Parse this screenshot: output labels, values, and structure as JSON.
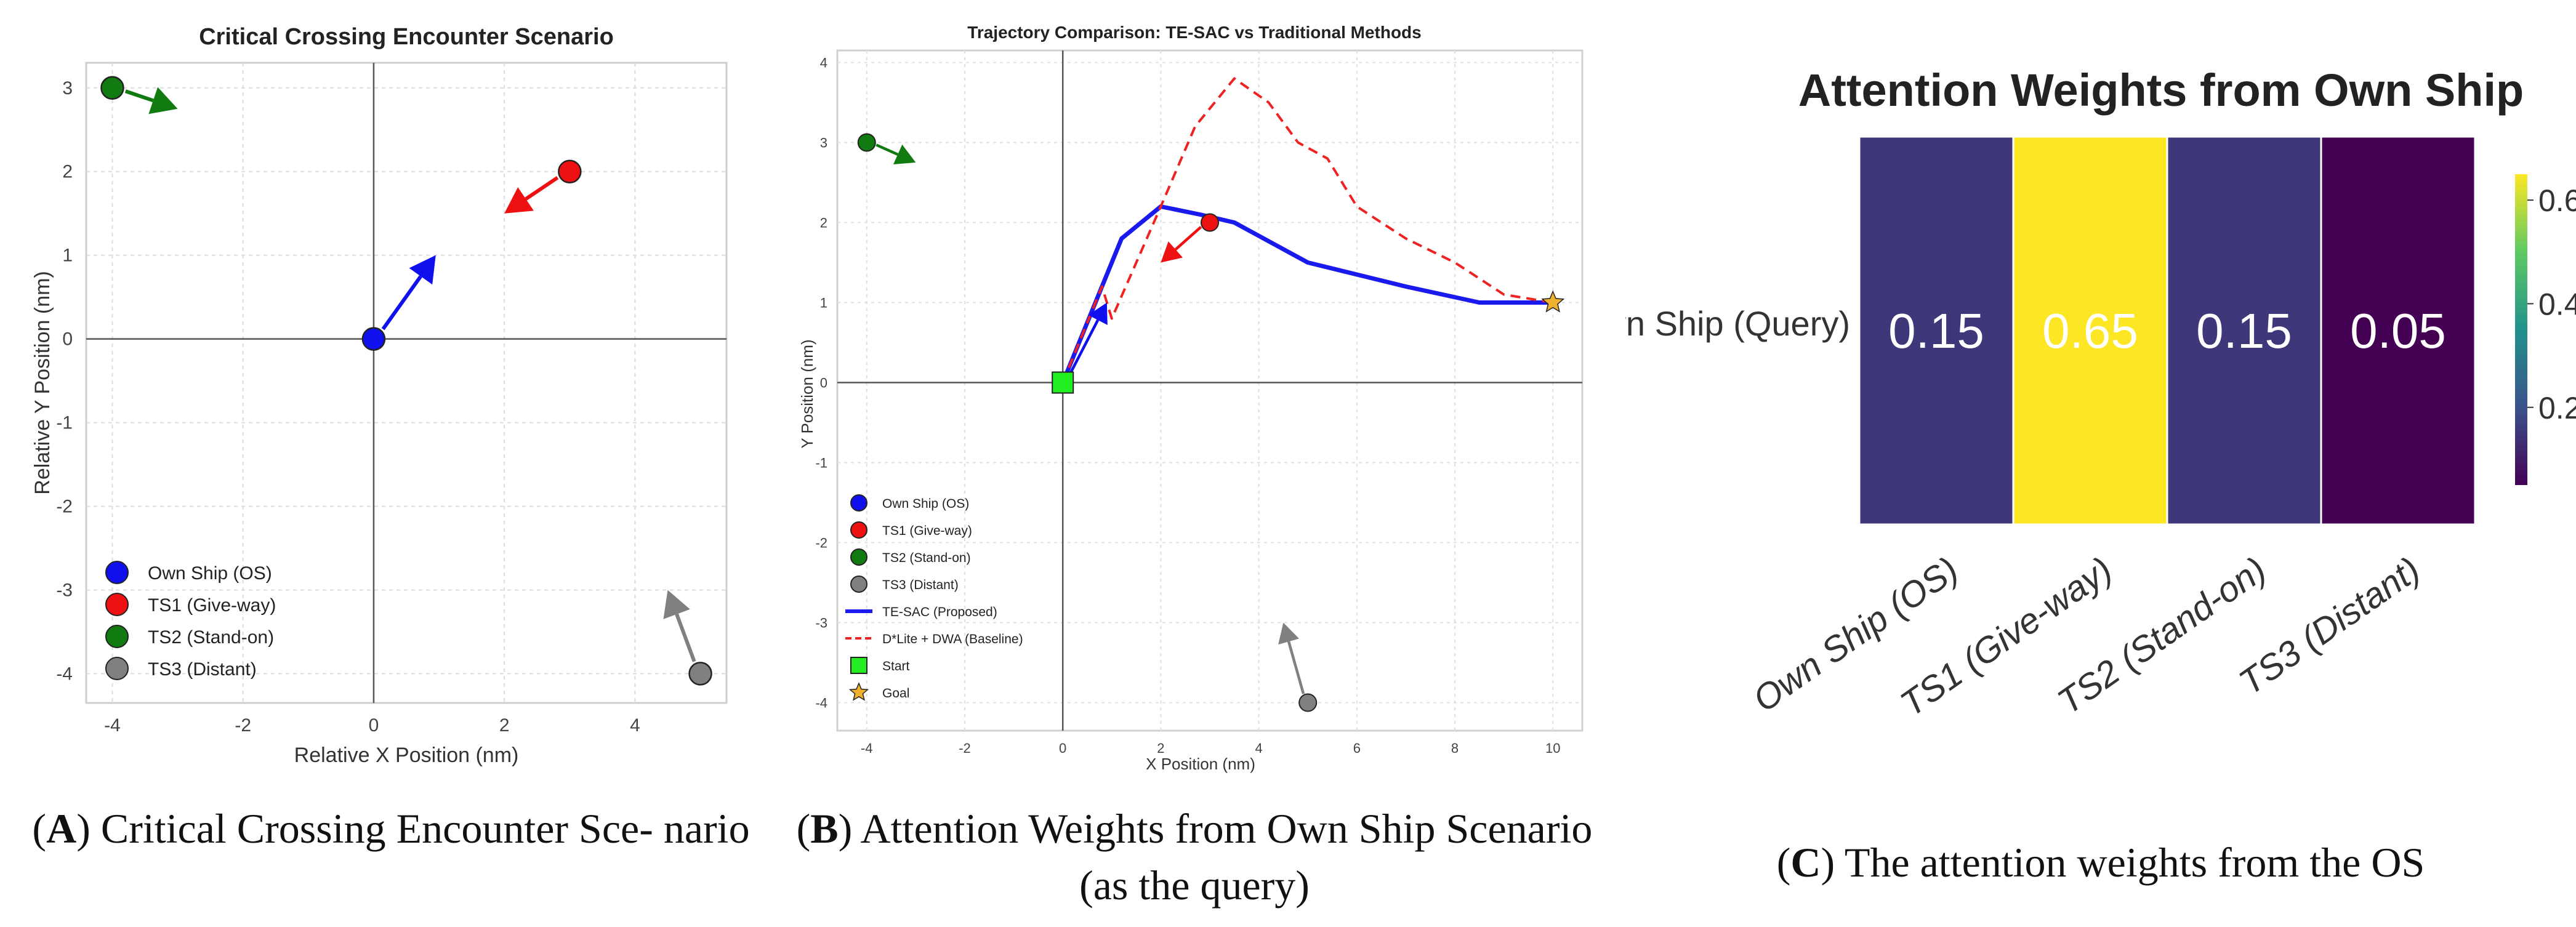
{
  "chart_data": [
    {
      "type": "scatter",
      "title": "Critical Crossing Encounter Scenario",
      "xlabel": "Relative X Position (nm)",
      "ylabel": "Relative Y Position (nm)",
      "xlim": [
        -4.4,
        5.4
      ],
      "ylim": [
        -4.35,
        3.3
      ],
      "xticks": [
        -4,
        -2,
        0,
        2,
        4
      ],
      "yticks": [
        3,
        2,
        1,
        0,
        -1,
        -2,
        -3,
        -4
      ],
      "grid": true,
      "legend_position": "bottom-left",
      "ships": [
        {
          "name": "Own Ship (OS)",
          "x": 0,
          "y": 0,
          "dx": 0.95,
          "dy": 1.0,
          "color": "#1010ee"
        },
        {
          "name": "TS1 (Give-way)",
          "x": 3,
          "y": 2,
          "dx": -1.0,
          "dy": -0.5,
          "color": "#ee1111"
        },
        {
          "name": "TS2 (Stand-on)",
          "x": -4,
          "y": 3,
          "dx": 1.0,
          "dy": -0.25,
          "color": "#117a11"
        },
        {
          "name": "TS3 (Distant)",
          "x": 5,
          "y": -4,
          "dx": -0.5,
          "dy": 1.0,
          "color": "#808080"
        }
      ],
      "caption_letter": "A",
      "caption_text": "Critical Crossing Encounter Sce- nario"
    },
    {
      "type": "line",
      "title": "Trajectory Comparison: TE-SAC vs Traditional Methods",
      "xlabel": "X Position (nm)",
      "ylabel": "Y Position (nm)",
      "xlim": [
        -4.6,
        10.6
      ],
      "ylim": [
        -4.35,
        4.15
      ],
      "xticks": [
        -4,
        -2,
        0,
        2,
        4,
        6,
        8,
        10
      ],
      "yticks": [
        4,
        3,
        2,
        1,
        0,
        -1,
        -2,
        -3,
        -4
      ],
      "grid": true,
      "legend_position": "bottom-left",
      "ships": [
        {
          "name": "Own Ship (OS)",
          "x": 0,
          "y": 0,
          "dx": 0.9,
          "dy": 1.0,
          "color": "#1010ee"
        },
        {
          "name": "TS1 (Give-way)",
          "x": 3,
          "y": 2,
          "dx": -1.0,
          "dy": -0.5,
          "color": "#ee1111"
        },
        {
          "name": "TS2 (Stand-on)",
          "x": -4,
          "y": 3,
          "dx": 1.0,
          "dy": -0.25,
          "color": "#117a11"
        },
        {
          "name": "TS3 (Distant)",
          "x": 5,
          "y": -4,
          "dx": -0.5,
          "dy": 1.0,
          "color": "#808080"
        }
      ],
      "series": [
        {
          "name": "TE-SAC (Proposed)",
          "color": "#1a1aee",
          "style": "solid",
          "x": [
            0,
            1.2,
            2.0,
            2.8,
            3.5,
            5.0,
            7.0,
            8.5,
            10.0
          ],
          "y": [
            0,
            1.8,
            2.2,
            2.1,
            2.0,
            1.5,
            1.2,
            1.0,
            1.0
          ]
        },
        {
          "name": "D*Lite + DWA (Baseline)",
          "color": "#ee2222",
          "style": "dashed",
          "x": [
            0,
            0.8,
            1.0,
            1.5,
            2.0,
            2.7,
            3.5,
            4.2,
            4.8,
            5.4,
            6.0,
            7.0,
            8.0,
            9.0,
            10.0
          ],
          "y": [
            0,
            1.2,
            0.8,
            1.5,
            2.2,
            3.2,
            3.8,
            3.5,
            3.0,
            2.8,
            2.2,
            1.8,
            1.5,
            1.1,
            1.0
          ]
        }
      ],
      "start": {
        "name": "Start",
        "x": 0,
        "y": 0,
        "color": "#22ee22"
      },
      "goal": {
        "name": "Goal",
        "x": 10,
        "y": 1,
        "color": "#f0b030"
      },
      "caption_letter": "B",
      "caption_text": "Attention Weights from Own Ship Scenario (as the query)"
    },
    {
      "type": "heatmap",
      "title": "Attention Weights from Own Ship",
      "row_labels": [
        "Own Ship (Query)"
      ],
      "col_labels": [
        "Own Ship (OS)",
        "TS1 (Give-way)",
        "TS2 (Stand-on)",
        "TS3 (Distant)"
      ],
      "values": [
        [
          0.15,
          0.65,
          0.15,
          0.05
        ]
      ],
      "value_labels": [
        "0.15",
        "0.65",
        "0.15",
        "0.05"
      ],
      "colorbar_ticks": [
        0.6,
        0.4,
        0.2
      ],
      "colorbar_tick_labels": [
        "0.6",
        "0.4",
        "0.2"
      ],
      "colorscale": "viridis",
      "vmin": 0.05,
      "vmax": 0.65,
      "caption_letter": "C",
      "caption_text": "The attention weights from the OS"
    }
  ]
}
